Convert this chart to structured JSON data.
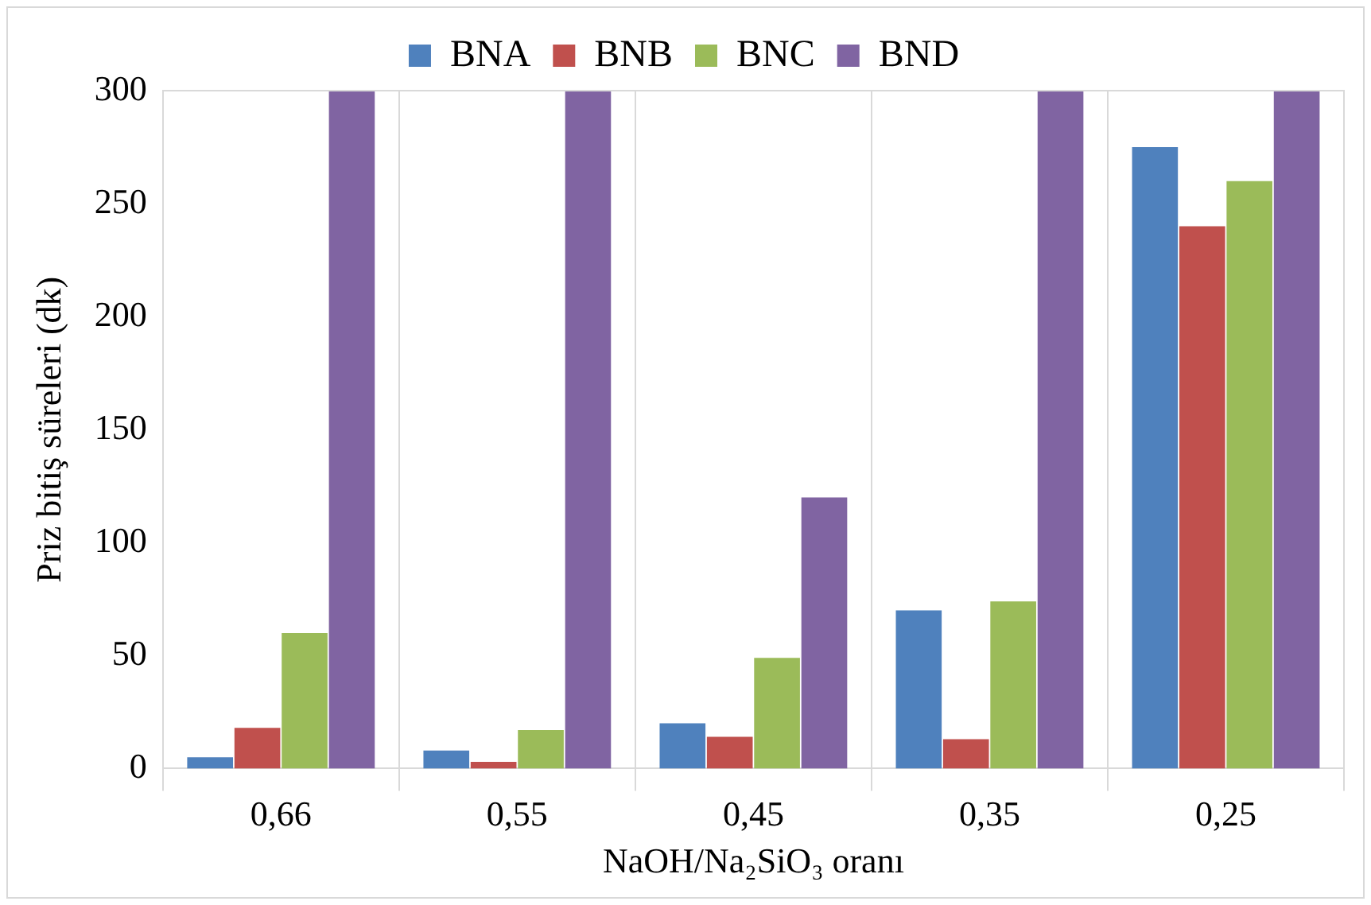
{
  "chart_data": {
    "type": "bar",
    "ylabel": "Priz bitiş süreleri (dk)",
    "xlabel": "NaOH/Na₂SiO₃ oranı",
    "categories": [
      "0,66",
      "0,55",
      "0,45",
      "0,35",
      "0,25"
    ],
    "series": [
      {
        "name": "BNA",
        "color": "#4f81bd",
        "values": [
          5,
          8,
          20,
          70,
          275
        ]
      },
      {
        "name": "BNB",
        "color": "#c0504d",
        "values": [
          18,
          3,
          14,
          13,
          240
        ]
      },
      {
        "name": "BNC",
        "color": "#9bbb59",
        "values": [
          60,
          17,
          49,
          74,
          260
        ]
      },
      {
        "name": "BND",
        "color": "#8064a2",
        "values": [
          300,
          300,
          120,
          300,
          300
        ]
      }
    ],
    "ylim": [
      0,
      300
    ],
    "yticks": [
      0,
      50,
      100,
      150,
      200,
      250,
      300
    ],
    "grid": "x",
    "legend": "top"
  }
}
